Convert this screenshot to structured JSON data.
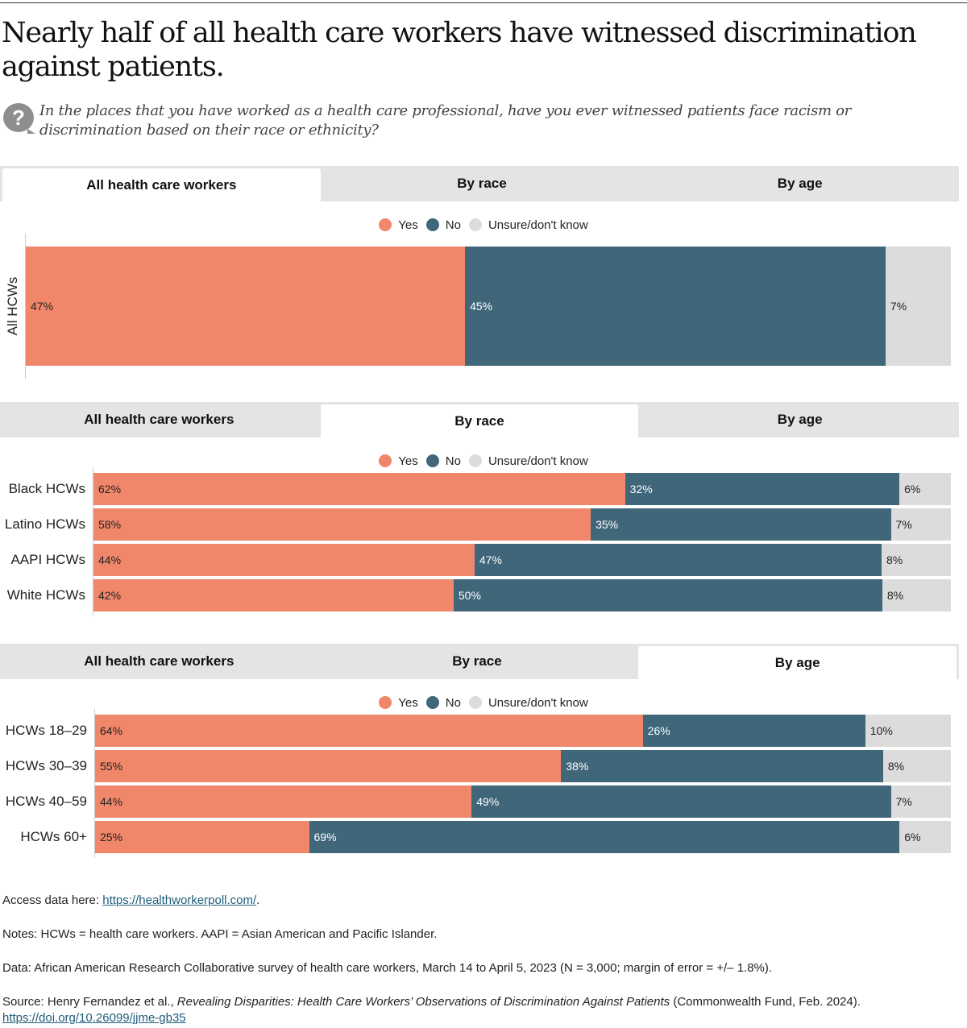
{
  "title": "Nearly half of all health care workers have witnessed discrimination against patients.",
  "question": "In the places that you have worked as a health care professional, have you ever witnessed patients face racism or discrimination based on their race or ethnicity?",
  "question_icon": "question-bubble-icon",
  "tabs": [
    "All health care workers",
    "By race",
    "By age"
  ],
  "legend": [
    "Yes",
    "No",
    "Unsure/don't know"
  ],
  "colors": {
    "Yes": "#F0876A",
    "No": "#40667A",
    "Unsure/don't know": "#DCDCDC"
  },
  "chart_data": [
    {
      "type": "bar",
      "stacked": true,
      "orientation": "horizontal",
      "active_tab": "All health care workers",
      "categories": [
        "All HCWs"
      ],
      "series": [
        {
          "name": "Yes",
          "values": [
            47
          ]
        },
        {
          "name": "No",
          "values": [
            45
          ]
        },
        {
          "name": "Unsure/don't know",
          "values": [
            7
          ]
        }
      ],
      "legend": "top"
    },
    {
      "type": "bar",
      "stacked": true,
      "orientation": "horizontal",
      "active_tab": "By race",
      "categories": [
        "Black HCWs",
        "Latino HCWs",
        "AAPI HCWs",
        "White HCWs"
      ],
      "series": [
        {
          "name": "Yes",
          "values": [
            62,
            58,
            44,
            42
          ]
        },
        {
          "name": "No",
          "values": [
            32,
            35,
            47,
            50
          ]
        },
        {
          "name": "Unsure/don't know",
          "values": [
            6,
            7,
            8,
            8
          ]
        }
      ],
      "legend": "top"
    },
    {
      "type": "bar",
      "stacked": true,
      "orientation": "horizontal",
      "active_tab": "By age",
      "categories": [
        "HCWs 18–29",
        "HCWs 30–39",
        "HCWs 40–59",
        "HCWs 60+"
      ],
      "series": [
        {
          "name": "Yes",
          "values": [
            64,
            55,
            44,
            25
          ]
        },
        {
          "name": "No",
          "values": [
            26,
            38,
            49,
            69
          ]
        },
        {
          "name": "Unsure/don't know",
          "values": [
            10,
            8,
            7,
            6
          ]
        }
      ],
      "legend": "top"
    }
  ],
  "footer": {
    "access_prefix": "Access data here: ",
    "access_link": "https://healthworkerpoll.com/",
    "access_suffix": ".",
    "notes": "Notes: HCWs = health care workers. AAPI = Asian American and Pacific Islander.",
    "data": "Data: African American Research Collaborative survey of health care workers, March 14 to April 5, 2023 (N = 3,000; margin of error = +/– 1.8%).",
    "source_prefix": "Source: Henry Fernandez et al., ",
    "source_title": "Revealing Disparities: Health Care Workers’ Observations of Discrimination Against Patients",
    "source_suffix": " (Commonwealth Fund, Feb. 2024).",
    "doi": "https://doi.org/10.26099/jjme-gb35"
  }
}
